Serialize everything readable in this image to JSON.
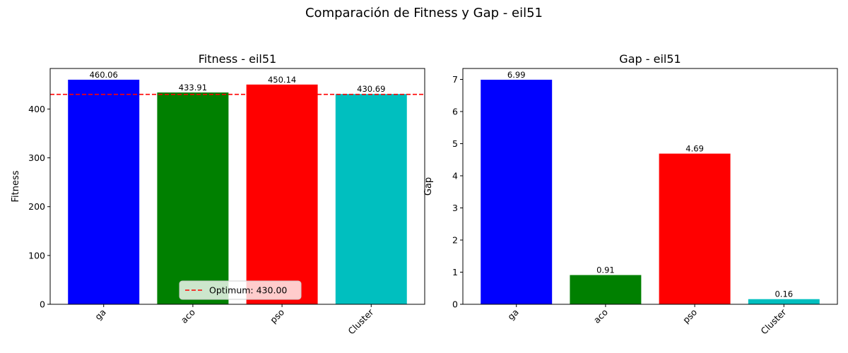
{
  "figure": {
    "title": "Comparación de Fitness y Gap - eil51"
  },
  "chart_data": [
    {
      "type": "bar",
      "title": "Fitness - eil51",
      "xlabel": "",
      "ylabel": "Fitness",
      "categories": [
        "ga",
        "aco",
        "pso",
        "Cluster"
      ],
      "values": [
        460.06,
        433.91,
        450.14,
        430.69
      ],
      "value_labels": [
        "460.06",
        "433.91",
        "450.14",
        "430.69"
      ],
      "colors": [
        "#0000ff",
        "#008000",
        "#ff0000",
        "#00bfbf"
      ],
      "ylim": [
        0,
        483.06
      ],
      "yticks": [
        0,
        100,
        200,
        300,
        400
      ],
      "grid": false,
      "reference_line": {
        "value": 430.0,
        "color": "#ff0000",
        "style": "dashed",
        "label": "Optimum: 430.00"
      },
      "legend": {
        "position": "lower-center",
        "entries": [
          "Optimum: 430.00"
        ]
      }
    },
    {
      "type": "bar",
      "title": "Gap - eil51",
      "xlabel": "",
      "ylabel": "Gap",
      "categories": [
        "ga",
        "aco",
        "pso",
        "Cluster"
      ],
      "values": [
        6.99,
        0.91,
        4.69,
        0.16
      ],
      "value_labels": [
        "6.99",
        "0.91",
        "4.69",
        "0.16"
      ],
      "colors": [
        "#0000ff",
        "#008000",
        "#ff0000",
        "#00bfbf"
      ],
      "ylim": [
        0,
        7.34
      ],
      "yticks": [
        0,
        1,
        2,
        3,
        4,
        5,
        6,
        7
      ],
      "grid": false
    }
  ]
}
